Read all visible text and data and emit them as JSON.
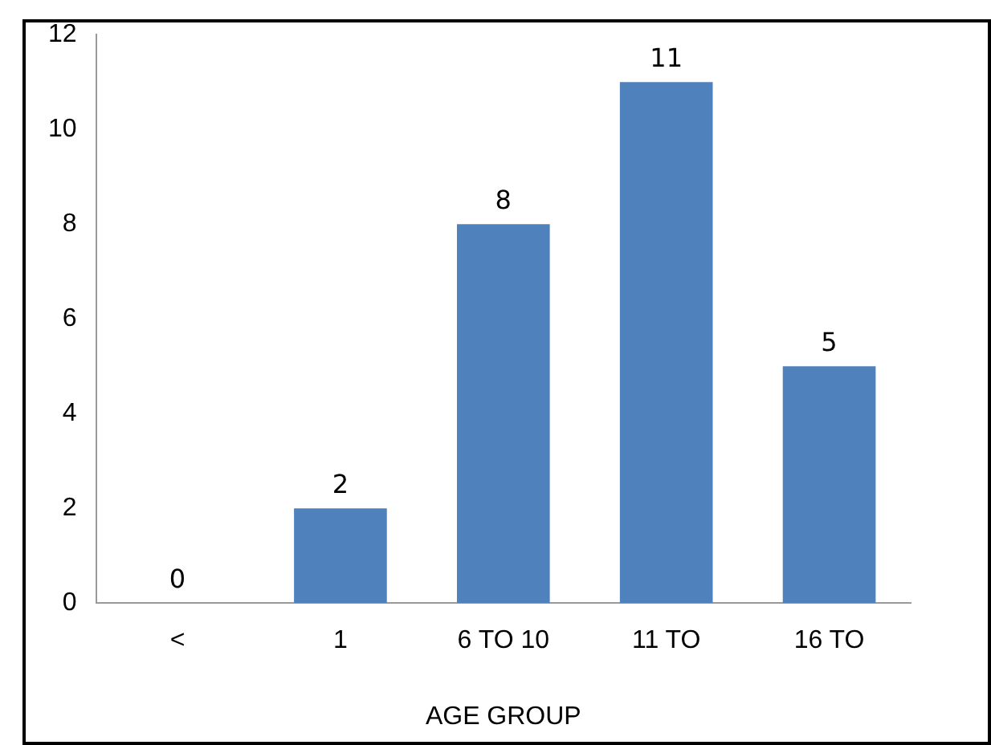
{
  "chart_data": {
    "type": "bar",
    "xlabel": "AGE GROUP",
    "categories": [
      "<",
      "1",
      "6 TO 10",
      "11 TO",
      "16 TO"
    ],
    "values": [
      0,
      2,
      8,
      11,
      5
    ],
    "color": "#4f81bd",
    "ylim": [
      0,
      12
    ],
    "yticks": [
      0,
      2,
      4,
      6,
      8,
      10,
      12
    ],
    "grid": false,
    "legend": false,
    "data_labels": true
  }
}
